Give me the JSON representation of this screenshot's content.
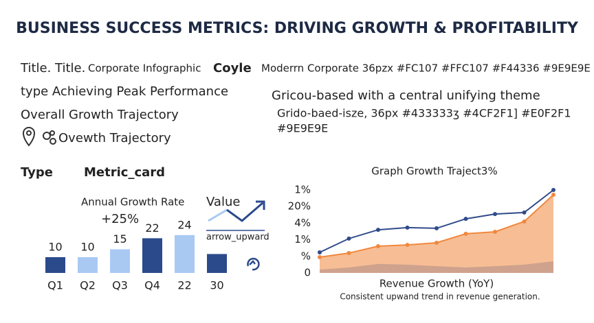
{
  "header": {
    "title": "BUSINESS SUCCESS METRICS: DRIVING GROWTH & PROFITABILITY"
  },
  "info": [
    "Title. Title.",
    "Corporate Infographic",
    "Coyle",
    "Moderrn Corporate 36pzx #FC107 #FFC107 #F44336 #9E9E9E",
    "type Achieving Peak Performance",
    "Overall Growth Trajectory",
    "Ovewth Trajectory",
    "Gricou-based with a central unifying theme",
    "Grido-baed-isze, 36px #433333ʒ #4CF2F1] #E0F2F1",
    "#9E9E9E"
  ],
  "metric_card": {
    "type_label": "Type",
    "type_value": "Metric_card",
    "label": "Annual Growth Rate",
    "value": "+25%",
    "value_label": "Value",
    "icon": "arrow_upward"
  },
  "chart_data": [
    {
      "type": "bar",
      "categories": [
        "Q1",
        "Q2",
        "Q3",
        "Q4",
        "22",
        "30"
      ],
      "values": [
        10,
        10,
        15,
        22,
        24,
        12
      ],
      "value_labels": [
        "10",
        "10",
        "15",
        "22",
        "24",
        null
      ],
      "colors": [
        "#2b4a8c",
        "#a9c9f2",
        "#a9c9f2",
        "#2b4a8c",
        "#a9c9f2",
        "#2b4a8c"
      ]
    },
    {
      "type": "area",
      "title": "Graph Growth  Traject3%",
      "x_label": "Revenue Growth (YoY)",
      "caption": "Consistent upwand trend in revenue generation.",
      "categories": [
        null,
        null,
        null,
        null,
        null,
        null,
        null,
        null,
        null
      ],
      "ylim": [
        0,
        5
      ],
      "yticks": [
        0,
        {
          "value": 1,
          "label": "%"
        },
        {
          "value": 2,
          "label": "1%"
        },
        {
          "value": 3,
          "label": "4%"
        },
        {
          "value": 4,
          "label": "20%"
        },
        {
          "value": 5,
          "label": "1%"
        }
      ],
      "series": [
        {
          "color": "#8fb0e8",
          "values": [
            0.2,
            0.33,
            0.54,
            0.5,
            0.41,
            0.33,
            0.41,
            0.5,
            0.7
          ]
        },
        {
          "color": "#f0883e",
          "values": [
            0.95,
            1.2,
            1.61,
            1.69,
            1.82,
            2.36,
            2.48,
            3.1,
            4.71
          ]
        },
        {
          "color": "#2f4b8a",
          "values": [
            1.24,
            2.07,
            2.6,
            2.73,
            2.69,
            3.26,
            3.55,
            3.64,
            5.0
          ]
        }
      ]
    }
  ]
}
